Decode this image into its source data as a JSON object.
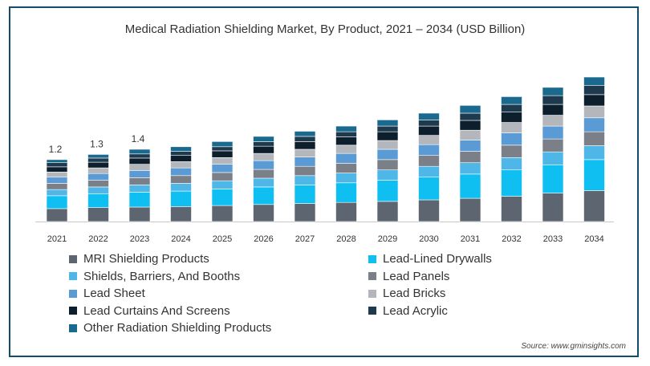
{
  "chart_data": {
    "type": "bar",
    "stacked": true,
    "title": "Medical Radiation Shielding Market, By Product, 2021 – 2034 (USD Billion)",
    "xlabel": "",
    "ylabel": "",
    "categories": [
      "2021",
      "2022",
      "2023",
      "2024",
      "2025",
      "2026",
      "2027",
      "2028",
      "2029",
      "2030",
      "2031",
      "2032",
      "2033",
      "2034"
    ],
    "totals": [
      1.2,
      1.3,
      1.4,
      1.45,
      1.55,
      1.65,
      1.75,
      1.85,
      1.97,
      2.1,
      2.25,
      2.42,
      2.6,
      2.8
    ],
    "data_labels": [
      {
        "category": "2021",
        "text": "1.2"
      },
      {
        "category": "2022",
        "text": "1.3"
      },
      {
        "category": "2023",
        "text": "1.4"
      }
    ],
    "series": [
      {
        "name": "MRI Shielding Products",
        "color": "#5d6570",
        "values": [
          0.25,
          0.27,
          0.28,
          0.29,
          0.31,
          0.33,
          0.35,
          0.37,
          0.39,
          0.42,
          0.45,
          0.49,
          0.55,
          0.6
        ]
      },
      {
        "name": "Lead-Lined Drywalls",
        "color": "#10bff2",
        "values": [
          0.25,
          0.27,
          0.29,
          0.3,
          0.32,
          0.34,
          0.36,
          0.38,
          0.41,
          0.44,
          0.47,
          0.51,
          0.55,
          0.6
        ]
      },
      {
        "name": "Shields, Barriers, And Booths",
        "color": "#4fb6e8",
        "values": [
          0.12,
          0.13,
          0.14,
          0.15,
          0.16,
          0.17,
          0.18,
          0.19,
          0.2,
          0.21,
          0.22,
          0.24,
          0.25,
          0.27
        ]
      },
      {
        "name": "Lead Panels",
        "color": "#7a7f88",
        "values": [
          0.12,
          0.13,
          0.14,
          0.15,
          0.16,
          0.17,
          0.18,
          0.19,
          0.2,
          0.21,
          0.22,
          0.24,
          0.25,
          0.27
        ]
      },
      {
        "name": "Lead Sheet",
        "color": "#5b9bd5",
        "values": [
          0.12,
          0.13,
          0.14,
          0.15,
          0.16,
          0.17,
          0.18,
          0.19,
          0.2,
          0.21,
          0.22,
          0.24,
          0.25,
          0.27
        ]
      },
      {
        "name": "Lead Bricks",
        "color": "#b3b6ba",
        "values": [
          0.1,
          0.11,
          0.12,
          0.12,
          0.13,
          0.14,
          0.15,
          0.16,
          0.17,
          0.18,
          0.19,
          0.2,
          0.21,
          0.23
        ]
      },
      {
        "name": "Lead Curtains And Screens",
        "color": "#0d1f2d",
        "values": [
          0.1,
          0.11,
          0.12,
          0.12,
          0.13,
          0.14,
          0.15,
          0.16,
          0.17,
          0.18,
          0.19,
          0.2,
          0.21,
          0.22
        ]
      },
      {
        "name": "Lead Acrylic",
        "color": "#1e3a4e",
        "values": [
          0.08,
          0.08,
          0.08,
          0.08,
          0.08,
          0.09,
          0.1,
          0.1,
          0.11,
          0.12,
          0.14,
          0.15,
          0.17,
          0.18
        ]
      },
      {
        "name": "Other Radiation Shielding Products",
        "color": "#1a6a8f",
        "values": [
          0.06,
          0.07,
          0.09,
          0.09,
          0.1,
          0.1,
          0.1,
          0.11,
          0.12,
          0.13,
          0.15,
          0.15,
          0.16,
          0.16
        ]
      }
    ],
    "ylim": [
      0,
      2.8
    ],
    "grid": false,
    "legend_position": "bottom"
  },
  "source_text": "Source: www.gminsights.com"
}
